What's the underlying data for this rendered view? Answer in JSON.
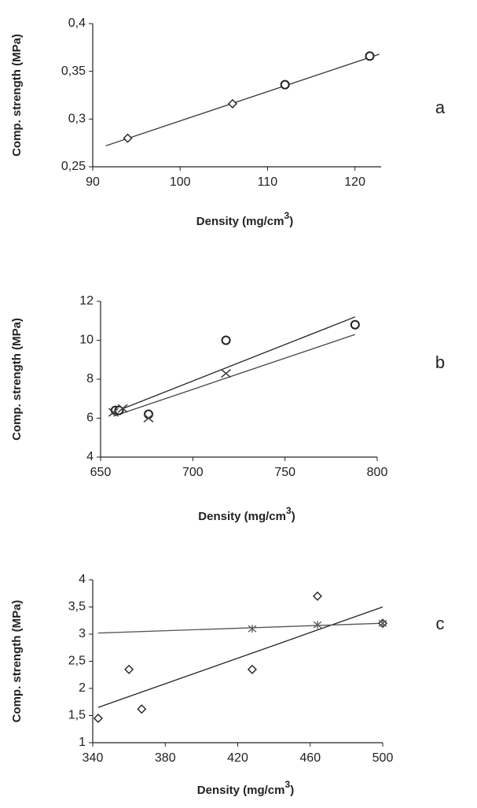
{
  "chart_data": [
    {
      "type": "scatter",
      "panel_label": "a",
      "x_label": {
        "text": "Density (mg/cm",
        "sup": "3",
        "end": ")"
      },
      "y_label": "Comp. strength (MPa)",
      "xlim": [
        90,
        123
      ],
      "xticks": [
        90,
        100,
        110,
        120
      ],
      "ylim": [
        0.25,
        0.4
      ],
      "yticks": [
        {
          "value": 0.4,
          "label": "0,4"
        },
        {
          "value": 0.35,
          "label": "0,35"
        },
        {
          "value": 0.3,
          "label": "0,3"
        },
        {
          "value": 0.25,
          "label": "0,25"
        }
      ],
      "series": [
        {
          "marker": "diamond",
          "color": "#222222",
          "x": [
            94,
            106
          ],
          "values": [
            0.28,
            0.316
          ]
        },
        {
          "marker": "circle",
          "color": "#222222",
          "x": [
            112,
            121.7
          ],
          "values": [
            0.336,
            0.366
          ]
        }
      ],
      "trendlines": [
        {
          "color": "#333333",
          "x": [
            91.5,
            122.8
          ],
          "values": [
            0.272,
            0.368
          ]
        }
      ]
    },
    {
      "type": "scatter",
      "panel_label": "b",
      "x_label": {
        "text": "Density (mg/cm",
        "sup": "3",
        "end": ")"
      },
      "y_label": "Comp. strength (MPa)",
      "xlim": [
        650,
        800
      ],
      "xticks": [
        650,
        700,
        750,
        800
      ],
      "ylim": [
        4,
        12
      ],
      "yticks": [
        12,
        10,
        8,
        6,
        4
      ],
      "series": [
        {
          "marker": "circle",
          "color": "#222222",
          "x": [
            658,
            660,
            676,
            718,
            788
          ],
          "values": [
            6.4,
            6.4,
            6.2,
            10.0,
            10.8
          ]
        },
        {
          "marker": "x",
          "color": "#444444",
          "x": [
            657,
            662,
            676,
            718
          ],
          "values": [
            6.3,
            6.5,
            6.0,
            8.3
          ]
        }
      ],
      "trendlines": [
        {
          "color": "#222222",
          "x": [
            657,
            788
          ],
          "values": [
            6.3,
            11.2
          ]
        },
        {
          "color": "#444444",
          "x": [
            657,
            788
          ],
          "values": [
            6.1,
            10.3
          ]
        }
      ]
    },
    {
      "type": "scatter",
      "panel_label": "c",
      "x_label": {
        "text": "Density (mg/cm",
        "sup": "3",
        "end": ")"
      },
      "y_label": "Comp. strength (MPa)",
      "xlim": [
        340,
        500
      ],
      "xticks": [
        340,
        380,
        420,
        460,
        500
      ],
      "ylim": [
        1,
        4
      ],
      "yticks": [
        4,
        {
          "value": 3.5,
          "label": "3,5"
        },
        3,
        {
          "value": 2.5,
          "label": "2,5"
        },
        2,
        {
          "value": 1.5,
          "label": "1,5"
        },
        1
      ],
      "series": [
        {
          "marker": "diamond",
          "color": "#222222",
          "x": [
            343,
            360,
            367,
            428,
            464,
            500
          ],
          "values": [
            1.45,
            2.35,
            1.62,
            2.35,
            3.7,
            3.2
          ]
        },
        {
          "marker": "star",
          "color": "#555555",
          "x": [
            428,
            464,
            500
          ],
          "values": [
            3.1,
            3.17,
            3.2
          ]
        }
      ],
      "trendlines": [
        {
          "color": "#222222",
          "x": [
            343,
            500
          ],
          "values": [
            1.65,
            3.5
          ]
        },
        {
          "color": "#555555",
          "x": [
            343,
            500
          ],
          "values": [
            3.02,
            3.2
          ]
        }
      ]
    }
  ]
}
